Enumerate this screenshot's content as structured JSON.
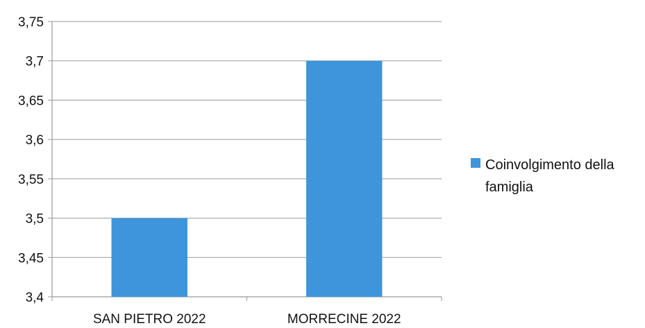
{
  "chart_data": {
    "type": "bar",
    "categories": [
      "SAN PIETRO 2022",
      "MORRECINE 2022"
    ],
    "series": [
      {
        "name": "Coinvolgimento della famiglia",
        "values": [
          3.5,
          3.7
        ],
        "color": "#3e95dc"
      }
    ],
    "ylim": [
      3.4,
      3.75
    ],
    "yticks": [
      "3,4",
      "3,45",
      "3,5",
      "3,55",
      "3,6",
      "3,65",
      "3,7",
      "3,75"
    ],
    "grid": true,
    "legend_position": "right",
    "title": "",
    "xlabel": "",
    "ylabel": ""
  },
  "legend": {
    "line1": "Coinvolgimento della",
    "line2": "famiglia"
  }
}
